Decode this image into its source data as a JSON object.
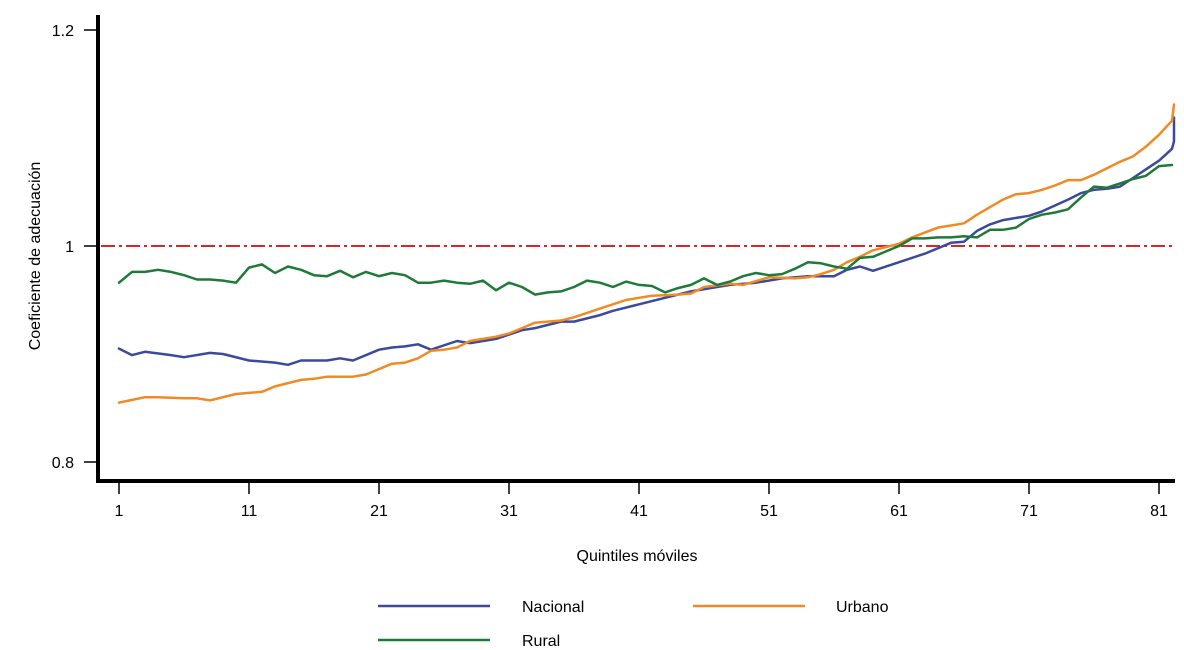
{
  "chart_data": {
    "type": "line",
    "title": "",
    "xlabel": "Quintiles móviles",
    "ylabel": "Coeficiente de adecuación",
    "xlim": [
      1,
      82
    ],
    "ylim": [
      0.8,
      1.2
    ],
    "xticks": [
      1,
      11,
      21,
      31,
      41,
      51,
      61,
      71,
      81
    ],
    "yticks": [
      {
        "value": 0.8,
        "label": "0.8"
      },
      {
        "value": 1.0,
        "label": "1"
      },
      {
        "value": 1.2,
        "label": "1.2"
      }
    ],
    "grid": false,
    "legend_position": "bottom",
    "reference_line": {
      "y": 1.0,
      "color": "#d62728",
      "style": "dash-dot"
    },
    "series": [
      {
        "name": "Nacional",
        "color": "#3b4a9a",
        "points": [
          [
            1,
            0.905
          ],
          [
            2,
            0.899
          ],
          [
            3,
            0.902
          ],
          [
            5,
            0.899
          ],
          [
            6,
            0.897
          ],
          [
            8,
            0.901
          ],
          [
            9,
            0.9
          ],
          [
            11,
            0.894
          ],
          [
            13,
            0.892
          ],
          [
            14,
            0.89
          ],
          [
            15,
            0.894
          ],
          [
            17,
            0.894
          ],
          [
            18,
            0.896
          ],
          [
            19,
            0.894
          ],
          [
            21,
            0.904
          ],
          [
            22,
            0.906
          ],
          [
            23,
            0.907
          ],
          [
            24,
            0.909
          ],
          [
            25,
            0.904
          ],
          [
            27,
            0.912
          ],
          [
            28,
            0.91
          ],
          [
            30,
            0.914
          ],
          [
            31,
            0.918
          ],
          [
            32,
            0.922
          ],
          [
            33,
            0.924
          ],
          [
            35,
            0.93
          ],
          [
            36,
            0.93
          ],
          [
            38,
            0.936
          ],
          [
            39,
            0.94
          ],
          [
            41,
            0.946
          ],
          [
            43,
            0.952
          ],
          [
            45,
            0.958
          ],
          [
            47,
            0.962
          ],
          [
            48,
            0.964
          ],
          [
            50,
            0.966
          ],
          [
            52,
            0.97
          ],
          [
            54,
            0.972
          ],
          [
            56,
            0.972
          ],
          [
            57,
            0.978
          ],
          [
            58,
            0.981
          ],
          [
            59,
            0.977
          ],
          [
            61,
            0.985
          ],
          [
            63,
            0.993
          ],
          [
            65,
            1.003
          ],
          [
            66,
            1.004
          ],
          [
            67,
            1.014
          ],
          [
            68,
            1.02
          ],
          [
            69,
            1.024
          ],
          [
            71,
            1.028
          ],
          [
            72,
            1.032
          ],
          [
            74,
            1.043
          ],
          [
            75,
            1.049
          ],
          [
            76,
            1.052
          ],
          [
            77,
            1.053
          ],
          [
            78,
            1.055
          ],
          [
            79,
            1.063
          ],
          [
            80,
            1.071
          ],
          [
            81,
            1.079
          ],
          [
            82,
            1.09
          ],
          [
            82.5,
            1.097
          ],
          [
            83,
            1.108
          ],
          [
            83.5,
            1.115
          ],
          [
            84,
            1.119
          ]
        ]
      },
      {
        "name": "Urbano",
        "color": "#f08a24",
        "points": [
          [
            1,
            0.855
          ],
          [
            3,
            0.86
          ],
          [
            4,
            0.86
          ],
          [
            6,
            0.859
          ],
          [
            7,
            0.859
          ],
          [
            8,
            0.857
          ],
          [
            10,
            0.863
          ],
          [
            11,
            0.864
          ],
          [
            12,
            0.865
          ],
          [
            13,
            0.87
          ],
          [
            15,
            0.876
          ],
          [
            16,
            0.877
          ],
          [
            17,
            0.879
          ],
          [
            18,
            0.879
          ],
          [
            19,
            0.879
          ],
          [
            20,
            0.881
          ],
          [
            21,
            0.886
          ],
          [
            22,
            0.891
          ],
          [
            23,
            0.892
          ],
          [
            24,
            0.896
          ],
          [
            25,
            0.903
          ],
          [
            26,
            0.904
          ],
          [
            27,
            0.906
          ],
          [
            28,
            0.912
          ],
          [
            30,
            0.916
          ],
          [
            31,
            0.919
          ],
          [
            32,
            0.924
          ],
          [
            33,
            0.929
          ],
          [
            35,
            0.931
          ],
          [
            36,
            0.934
          ],
          [
            38,
            0.942
          ],
          [
            40,
            0.95
          ],
          [
            42,
            0.954
          ],
          [
            44,
            0.955
          ],
          [
            45,
            0.956
          ],
          [
            46,
            0.962
          ],
          [
            48,
            0.965
          ],
          [
            49,
            0.964
          ],
          [
            51,
            0.971
          ],
          [
            53,
            0.97
          ],
          [
            54,
            0.971
          ],
          [
            55,
            0.974
          ],
          [
            56,
            0.978
          ],
          [
            57,
            0.985
          ],
          [
            58,
            0.99
          ],
          [
            59,
            0.996
          ],
          [
            61,
            1.002
          ],
          [
            62,
            1.008
          ],
          [
            64,
            1.017
          ],
          [
            66,
            1.021
          ],
          [
            67,
            1.029
          ],
          [
            69,
            1.043
          ],
          [
            70,
            1.048
          ],
          [
            71,
            1.049
          ],
          [
            72,
            1.052
          ],
          [
            73,
            1.056
          ],
          [
            74,
            1.061
          ],
          [
            75,
            1.061
          ],
          [
            76,
            1.066
          ],
          [
            77,
            1.072
          ],
          [
            78,
            1.078
          ],
          [
            79,
            1.083
          ],
          [
            80,
            1.092
          ],
          [
            81,
            1.103
          ],
          [
            82,
            1.116
          ],
          [
            83,
            1.131
          ],
          [
            84,
            1.131
          ]
        ]
      },
      {
        "name": "Rural",
        "color": "#1f7a3a",
        "points": [
          [
            1,
            0.966
          ],
          [
            2,
            0.976
          ],
          [
            3,
            0.976
          ],
          [
            4,
            0.978
          ],
          [
            5,
            0.976
          ],
          [
            6,
            0.973
          ],
          [
            7,
            0.969
          ],
          [
            8,
            0.969
          ],
          [
            9,
            0.968
          ],
          [
            10,
            0.966
          ],
          [
            11,
            0.98
          ],
          [
            12,
            0.983
          ],
          [
            13,
            0.975
          ],
          [
            14,
            0.981
          ],
          [
            15,
            0.978
          ],
          [
            16,
            0.973
          ],
          [
            17,
            0.972
          ],
          [
            18,
            0.977
          ],
          [
            19,
            0.971
          ],
          [
            20,
            0.976
          ],
          [
            21,
            0.972
          ],
          [
            22,
            0.975
          ],
          [
            23,
            0.973
          ],
          [
            24,
            0.966
          ],
          [
            25,
            0.966
          ],
          [
            26,
            0.968
          ],
          [
            27,
            0.966
          ],
          [
            28,
            0.965
          ],
          [
            29,
            0.968
          ],
          [
            30,
            0.959
          ],
          [
            31,
            0.966
          ],
          [
            32,
            0.962
          ],
          [
            33,
            0.955
          ],
          [
            34,
            0.957
          ],
          [
            35,
            0.958
          ],
          [
            36,
            0.962
          ],
          [
            37,
            0.968
          ],
          [
            38,
            0.966
          ],
          [
            39,
            0.962
          ],
          [
            40,
            0.967
          ],
          [
            41,
            0.964
          ],
          [
            42,
            0.963
          ],
          [
            43,
            0.957
          ],
          [
            44,
            0.961
          ],
          [
            45,
            0.964
          ],
          [
            46,
            0.97
          ],
          [
            47,
            0.964
          ],
          [
            48,
            0.967
          ],
          [
            49,
            0.972
          ],
          [
            50,
            0.975
          ],
          [
            51,
            0.973
          ],
          [
            52,
            0.974
          ],
          [
            53,
            0.979
          ],
          [
            54,
            0.985
          ],
          [
            55,
            0.984
          ],
          [
            56,
            0.981
          ],
          [
            57,
            0.979
          ],
          [
            58,
            0.989
          ],
          [
            59,
            0.99
          ],
          [
            60,
            0.995
          ],
          [
            61,
            1.0
          ],
          [
            62,
            1.007
          ],
          [
            63,
            1.007
          ],
          [
            64,
            1.008
          ],
          [
            65,
            1.008
          ],
          [
            66,
            1.009
          ],
          [
            67,
            1.008
          ],
          [
            68,
            1.015
          ],
          [
            69,
            1.015
          ],
          [
            70,
            1.017
          ],
          [
            71,
            1.025
          ],
          [
            72,
            1.029
          ],
          [
            73,
            1.031
          ],
          [
            74,
            1.034
          ],
          [
            75,
            1.045
          ],
          [
            76,
            1.055
          ],
          [
            77,
            1.054
          ],
          [
            78,
            1.058
          ],
          [
            79,
            1.062
          ],
          [
            80,
            1.065
          ],
          [
            81,
            1.074
          ],
          [
            82,
            1.075
          ]
        ]
      }
    ]
  }
}
